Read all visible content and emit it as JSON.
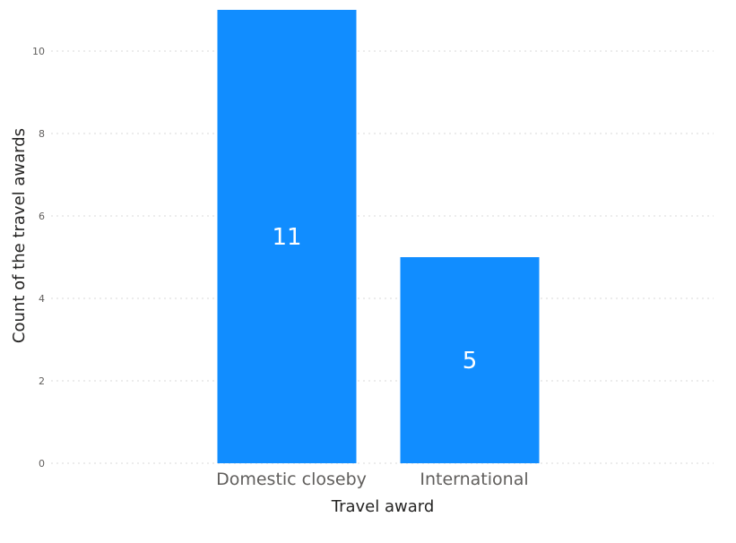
{
  "chart_data": {
    "type": "bar",
    "title": "",
    "xlabel": "Travel award",
    "ylabel": "Count of the travel awards",
    "categories": [
      "Domestic closeby",
      "International"
    ],
    "values": [
      11,
      5
    ],
    "data_labels": [
      "11",
      "5"
    ],
    "yticks": [
      0,
      2,
      4,
      6,
      8,
      10
    ],
    "ylim": [
      0,
      11
    ],
    "grid": true,
    "legend": "none",
    "colors": {
      "bar": "#118dff",
      "data_label": "#ffffff"
    }
  }
}
